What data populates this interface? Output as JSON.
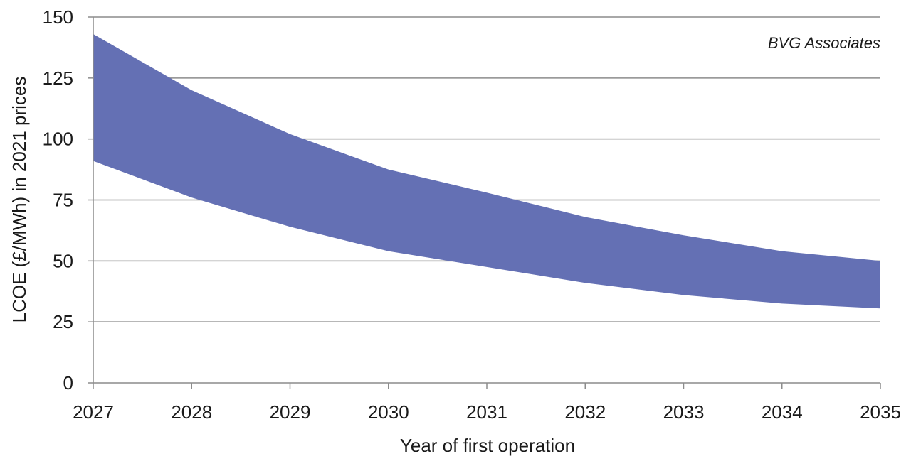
{
  "chart_data": {
    "type": "area",
    "title": "",
    "xlabel": "Year of first operation",
    "ylabel": "LCOE (£/MWh) in 2021 prices",
    "annotation": "BVG Associates",
    "x": [
      "2027",
      "2028",
      "2029",
      "2030",
      "2031",
      "2032",
      "2033",
      "2034",
      "2035"
    ],
    "series": [
      {
        "values_upper": [
          143,
          120,
          102,
          87.5,
          78,
          68,
          60.5,
          54,
          50
        ],
        "values_lower": [
          91,
          76,
          64,
          54,
          47.5,
          41,
          36,
          32.5,
          30.5
        ]
      }
    ],
    "yticks": [
      "0",
      "25",
      "50",
      "75",
      "100",
      "125",
      "150"
    ],
    "ylim": [
      0,
      150
    ],
    "grid": true,
    "band_color": "#6470b4"
  }
}
